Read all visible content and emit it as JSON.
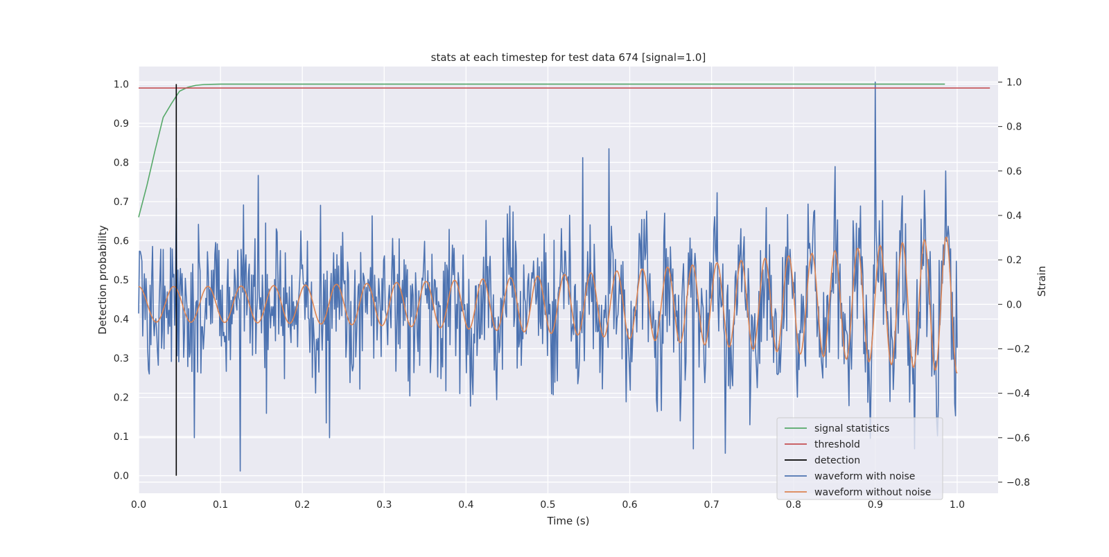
{
  "chart_data": {
    "type": "line",
    "title": "stats at each timestep for test data 674 [signal=1.0]",
    "xlabel": "Time (s)",
    "ylabel_left": "Detection probability",
    "ylabel_right": "Strain",
    "xlim": [
      0.0,
      1.05
    ],
    "ylim_left": [
      -0.045,
      1.045
    ],
    "ylim_right": [
      -0.85,
      1.07
    ],
    "x_ticks": [
      "0.0",
      "0.1",
      "0.2",
      "0.3",
      "0.4",
      "0.5",
      "0.6",
      "0.7",
      "0.8",
      "0.9",
      "1.0"
    ],
    "y_ticks_left": [
      "0.0",
      "0.1",
      "0.2",
      "0.3",
      "0.4",
      "0.5",
      "0.6",
      "0.7",
      "0.8",
      "0.9",
      "1.0"
    ],
    "y_ticks_right": [
      "−0.8",
      "−0.6",
      "−0.4",
      "−0.2",
      "0.0",
      "0.2",
      "0.4",
      "0.6",
      "0.8",
      "1.0"
    ],
    "grid": true,
    "legend_position": "lower-right",
    "series": [
      {
        "name": "signal statistics",
        "axis": "left",
        "color": "#55a868",
        "x": [
          0.0,
          0.01,
          0.02,
          0.03,
          0.04,
          0.05,
          0.06,
          0.07,
          0.08,
          0.1,
          0.2,
          0.4,
          0.6,
          0.8,
          0.985
        ],
        "y": [
          0.66,
          0.74,
          0.83,
          0.915,
          0.95,
          0.982,
          0.992,
          0.997,
          0.999,
          1.0,
          1.0,
          1.0,
          1.0,
          1.0,
          1.0
        ]
      },
      {
        "name": "threshold",
        "axis": "left",
        "color": "#c44e52",
        "x": [
          0.0,
          1.04
        ],
        "y": [
          0.99,
          0.99
        ]
      },
      {
        "name": "detection",
        "axis": "left",
        "color": "#000000",
        "x": [
          0.046,
          0.046
        ],
        "y": [
          0.0,
          1.0
        ]
      },
      {
        "name": "waveform with noise",
        "axis": "right",
        "color": "#4c72b0",
        "x_range": [
          0.0,
          1.0
        ],
        "n_points": 1000,
        "noise_sigma": 0.17,
        "seed": 674,
        "spikes": [
          {
            "x": 0.9,
            "y": 1.0
          },
          {
            "x": 0.124,
            "y": -0.75
          },
          {
            "x": 0.068,
            "y": -0.6
          },
          {
            "x": 0.233,
            "y": -0.6
          },
          {
            "x": 0.543,
            "y": 0.66
          },
          {
            "x": 0.575,
            "y": 0.7
          },
          {
            "x": 0.678,
            "y": -0.65
          },
          {
            "x": 0.717,
            "y": -0.67
          },
          {
            "x": 0.948,
            "y": -0.65
          },
          {
            "x": 0.986,
            "y": 0.6
          },
          {
            "x": 0.146,
            "y": 0.58
          }
        ]
      },
      {
        "name": "waveform without noise",
        "axis": "right",
        "color": "#dd8452",
        "x_range": [
          0.0,
          1.0
        ],
        "n_points": 1000,
        "amplitude_start": 0.08,
        "amplitude_end": 0.31,
        "freq_start": 23,
        "freq_end": 38,
        "phase": 1.57
      }
    ]
  }
}
